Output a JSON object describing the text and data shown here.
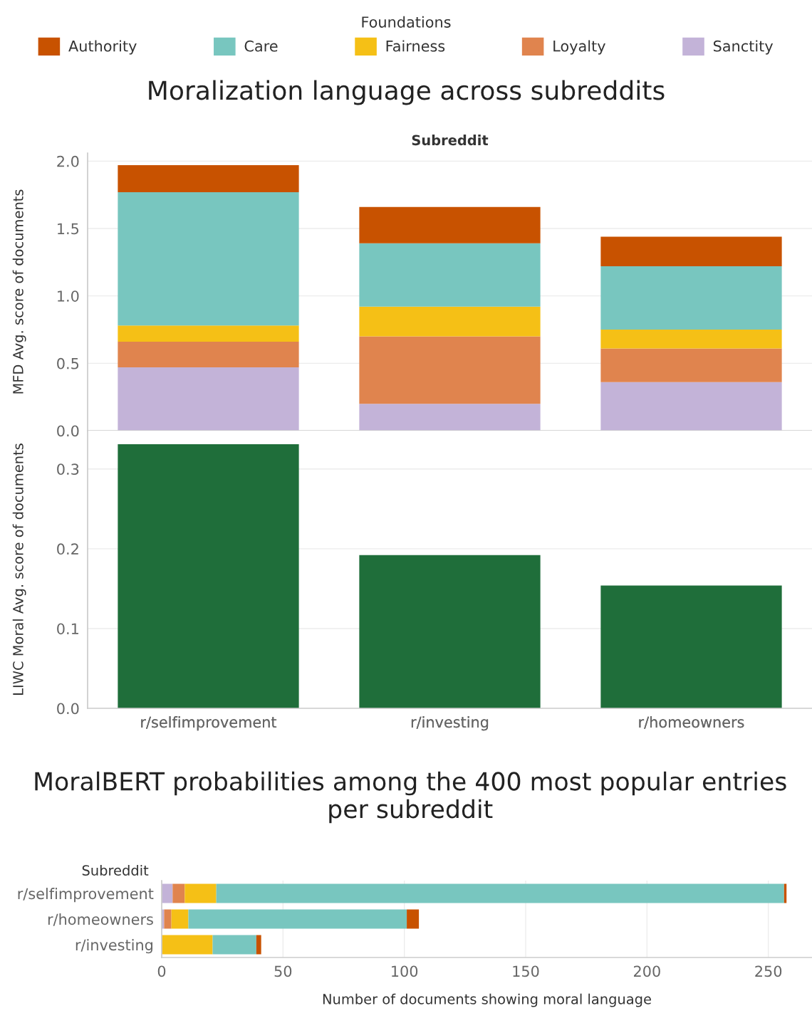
{
  "chart_data": [
    {
      "type": "bar",
      "title": "Moralization language across subreddits",
      "xlabel": "Subreddit",
      "ylabel": "MFD Avg. score of documents",
      "legend_title": "Foundations",
      "legend": "top",
      "stacked": true,
      "grid": "y",
      "tick_labels": "y",
      "categories": [
        "r/selfimprovement",
        "r/investing",
        "r/homeowners"
      ],
      "ylim": [
        0,
        2.06
      ],
      "yticks": [
        {
          "value": 0,
          "label": "0.0"
        },
        0.5,
        {
          "value": 1,
          "label": "1.0"
        },
        1.5,
        {
          "value": 2,
          "label": "2.0"
        }
      ],
      "series": [
        {
          "name": "Sanctity",
          "color": "#c3b3d8",
          "values": [
            0.47,
            0.2,
            0.36
          ]
        },
        {
          "name": "Loyalty",
          "color": "#e0844e",
          "values": [
            0.19,
            0.5,
            0.25
          ]
        },
        {
          "name": "Fairness",
          "color": "#f5c016",
          "values": [
            0.12,
            0.22,
            0.14
          ]
        },
        {
          "name": "Care",
          "color": "#78c6bf",
          "values": [
            0.99,
            0.47,
            0.47
          ]
        },
        {
          "name": "Authority",
          "color": "#c85200",
          "values": [
            0.2,
            0.27,
            0.22
          ]
        }
      ]
    },
    {
      "type": "bar",
      "ylabel": "LIWC Moral Avg. score of documents",
      "grid": "y",
      "categories": [
        "r/selfimprovement",
        "r/investing",
        "r/homeowners"
      ],
      "ylim": [
        0,
        0.348
      ],
      "yticks": [
        {
          "value": 0,
          "label": "0.0"
        },
        0.1,
        0.2,
        0.3
      ],
      "series": [
        {
          "color": "#1f6e3a",
          "values": [
            0.331,
            0.192,
            0.154
          ]
        }
      ]
    },
    {
      "type": "bar",
      "orientation": "horizontal",
      "stacked": true,
      "title": "MoralBERT probabilities among the 400 most popular entries per subreddit",
      "ylabel": "Subreddit",
      "xlabel": "Number of documents showing moral language",
      "grid": "x",
      "categories": [
        "r/selfimprovement",
        "r/homeowners",
        "r/investing"
      ],
      "xlim": [
        0,
        268
      ],
      "xticks": [
        0,
        50,
        100,
        150,
        200,
        250
      ],
      "series": [
        {
          "color": "#c3b3d8",
          "values": [
            4.5,
            1,
            0
          ]
        },
        {
          "color": "#e0844e",
          "values": [
            5,
            3,
            0
          ]
        },
        {
          "color": "#f5c016",
          "values": [
            13,
            7,
            21
          ]
        },
        {
          "color": "#78c6bf",
          "values": [
            234,
            90,
            18
          ]
        },
        {
          "color": "#c85200",
          "values": [
            1,
            5,
            2
          ]
        }
      ]
    }
  ]
}
